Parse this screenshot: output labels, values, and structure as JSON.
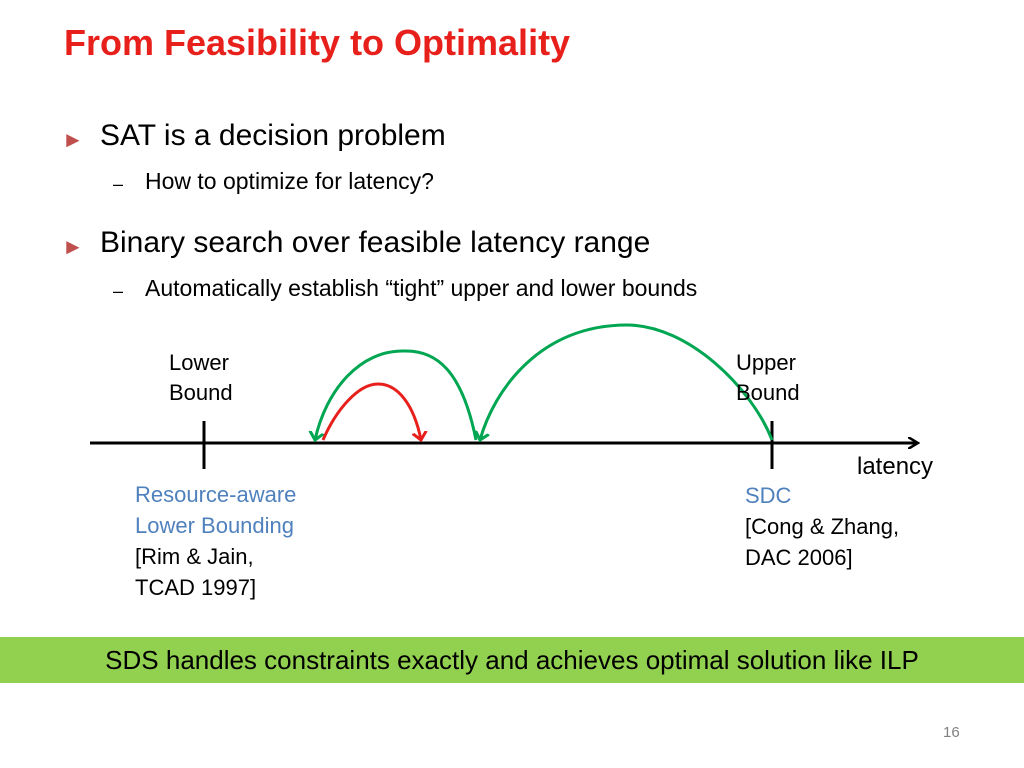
{
  "slide": {
    "title": "From Feasibility to Optimality",
    "page_number": "16"
  },
  "bullets": [
    {
      "text": "SAT is a decision problem",
      "sub": "How to optimize for latency?"
    },
    {
      "text": "Binary search over feasible latency range",
      "sub": "Automatically establish “tight” upper and lower bounds"
    }
  ],
  "markers": {
    "bullet": "►",
    "dash": "–"
  },
  "diagram": {
    "axis_label": "latency",
    "lower_label": [
      "Lower",
      "Bound"
    ],
    "upper_label": [
      "Upper",
      "Bound"
    ],
    "lower_ref": [
      "Resource-aware",
      "Lower Bounding",
      "[Rim & Jain,",
      "TCAD 1997]"
    ],
    "upper_ref": [
      "SDC",
      "[Cong & Zhang,",
      "DAC 2006]"
    ],
    "colors": {
      "green_arc": "#00a651",
      "red_arc": "#e8201c",
      "ref_highlight": "#4f81bd"
    }
  },
  "banner": {
    "text": "SDS handles constraints exactly and achieves optimal solution like ILP",
    "color": "#92d050"
  }
}
